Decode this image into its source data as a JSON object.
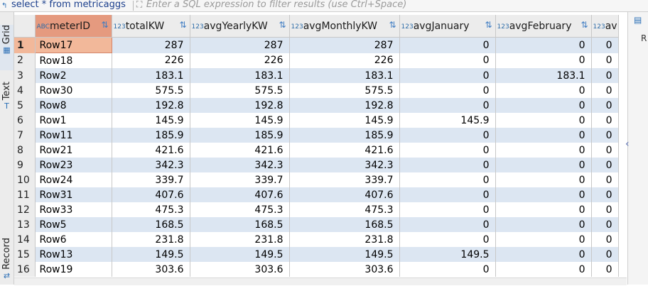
{
  "query": "select * from metricaggs",
  "filter_placeholder": "Enter a SQL expression to filter results (use Ctrl+Space)",
  "left_tabs": {
    "grid": "Grid",
    "text": "Text",
    "record": "Record"
  },
  "right_panel_label": "R",
  "columns": [
    {
      "name": "meterID",
      "type_badge": "ABC"
    },
    {
      "name": "totalKW",
      "type_badge": "123"
    },
    {
      "name": "avgYearlyKW",
      "type_badge": "123"
    },
    {
      "name": "avgMonthlyKW",
      "type_badge": "123"
    },
    {
      "name": "avgJanuary",
      "type_badge": "123"
    },
    {
      "name": "avgFebruary",
      "type_badge": "123"
    },
    {
      "name": "av",
      "type_badge": "123"
    }
  ],
  "rows": [
    [
      "Row17",
      "287",
      "287",
      "287",
      "0",
      "0",
      "0"
    ],
    [
      "Row18",
      "226",
      "226",
      "226",
      "0",
      "0",
      "0"
    ],
    [
      "Row2",
      "183.1",
      "183.1",
      "183.1",
      "0",
      "183.1",
      "0"
    ],
    [
      "Row30",
      "575.5",
      "575.5",
      "575.5",
      "0",
      "0",
      "0"
    ],
    [
      "Row8",
      "192.8",
      "192.8",
      "192.8",
      "0",
      "0",
      "0"
    ],
    [
      "Row1",
      "145.9",
      "145.9",
      "145.9",
      "145.9",
      "0",
      "0"
    ],
    [
      "Row11",
      "185.9",
      "185.9",
      "185.9",
      "0",
      "0",
      "0"
    ],
    [
      "Row21",
      "421.6",
      "421.6",
      "421.6",
      "0",
      "0",
      "0"
    ],
    [
      "Row23",
      "342.3",
      "342.3",
      "342.3",
      "0",
      "0",
      "0"
    ],
    [
      "Row24",
      "339.7",
      "339.7",
      "339.7",
      "0",
      "0",
      "0"
    ],
    [
      "Row31",
      "407.6",
      "407.6",
      "407.6",
      "0",
      "0",
      "0"
    ],
    [
      "Row33",
      "475.3",
      "475.3",
      "475.3",
      "0",
      "0",
      "0"
    ],
    [
      "Row5",
      "168.5",
      "168.5",
      "168.5",
      "0",
      "0",
      "0"
    ],
    [
      "Row6",
      "231.8",
      "231.8",
      "231.8",
      "0",
      "0",
      "0"
    ],
    [
      "Row13",
      "149.5",
      "149.5",
      "149.5",
      "149.5",
      "0",
      "0"
    ],
    [
      "Row19",
      "303.6",
      "303.6",
      "303.6",
      "0",
      "0",
      "0"
    ]
  ],
  "selected_row": 1
}
